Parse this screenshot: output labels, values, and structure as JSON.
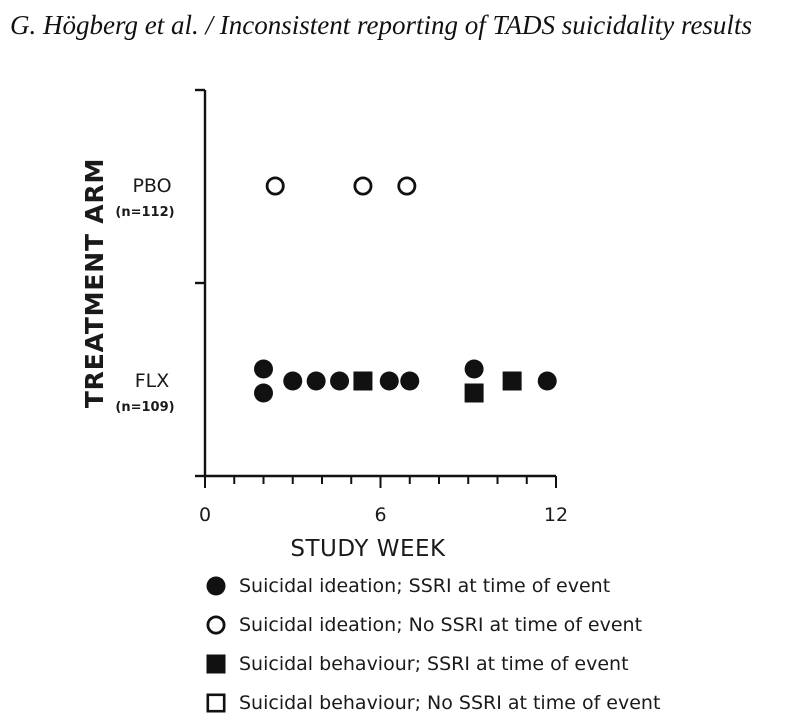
{
  "header": {
    "text": "G. Högberg et al. / Inconsistent reporting of TADS suicidality results"
  },
  "chart_data": {
    "type": "scatter",
    "title": "",
    "xlabel": "STUDY WEEK",
    "ylabel": "TREATMENT ARM",
    "xlim": [
      0,
      12
    ],
    "xticks": [
      "0",
      "6",
      "12"
    ],
    "categories": [
      {
        "key": "PBO",
        "label": "PBO",
        "sublabel": "(n=112)"
      },
      {
        "key": "FLX",
        "label": "FLX",
        "sublabel": "(n=109)"
      }
    ],
    "series": [
      {
        "name": "Suicidal ideation; SSRI at time of event",
        "marker": "filled-circle",
        "points": [
          {
            "arm": "FLX",
            "week": 2.0,
            "stack": 1
          },
          {
            "arm": "FLX",
            "week": 2.0,
            "stack": -1
          },
          {
            "arm": "FLX",
            "week": 3.0,
            "stack": 0
          },
          {
            "arm": "FLX",
            "week": 3.8,
            "stack": 0
          },
          {
            "arm": "FLX",
            "week": 4.6,
            "stack": 0
          },
          {
            "arm": "FLX",
            "week": 6.3,
            "stack": 0
          },
          {
            "arm": "FLX",
            "week": 7.0,
            "stack": 0
          },
          {
            "arm": "FLX",
            "week": 9.2,
            "stack": 1
          },
          {
            "arm": "FLX",
            "week": 11.7,
            "stack": 0
          }
        ]
      },
      {
        "name": "Suicidal ideation; No SSRI at time of event",
        "marker": "open-circle",
        "points": [
          {
            "arm": "PBO",
            "week": 2.4,
            "stack": 0
          },
          {
            "arm": "PBO",
            "week": 5.4,
            "stack": 0
          },
          {
            "arm": "PBO",
            "week": 6.9,
            "stack": 0
          }
        ]
      },
      {
        "name": "Suicidal behaviour; SSRI at time of event",
        "marker": "filled-square",
        "points": [
          {
            "arm": "FLX",
            "week": 5.4,
            "stack": 0
          },
          {
            "arm": "FLX",
            "week": 9.2,
            "stack": -1
          },
          {
            "arm": "FLX",
            "week": 10.5,
            "stack": 0
          }
        ]
      },
      {
        "name": "Suicidal behaviour; No SSRI at time of event",
        "marker": "open-square",
        "points": []
      }
    ]
  }
}
